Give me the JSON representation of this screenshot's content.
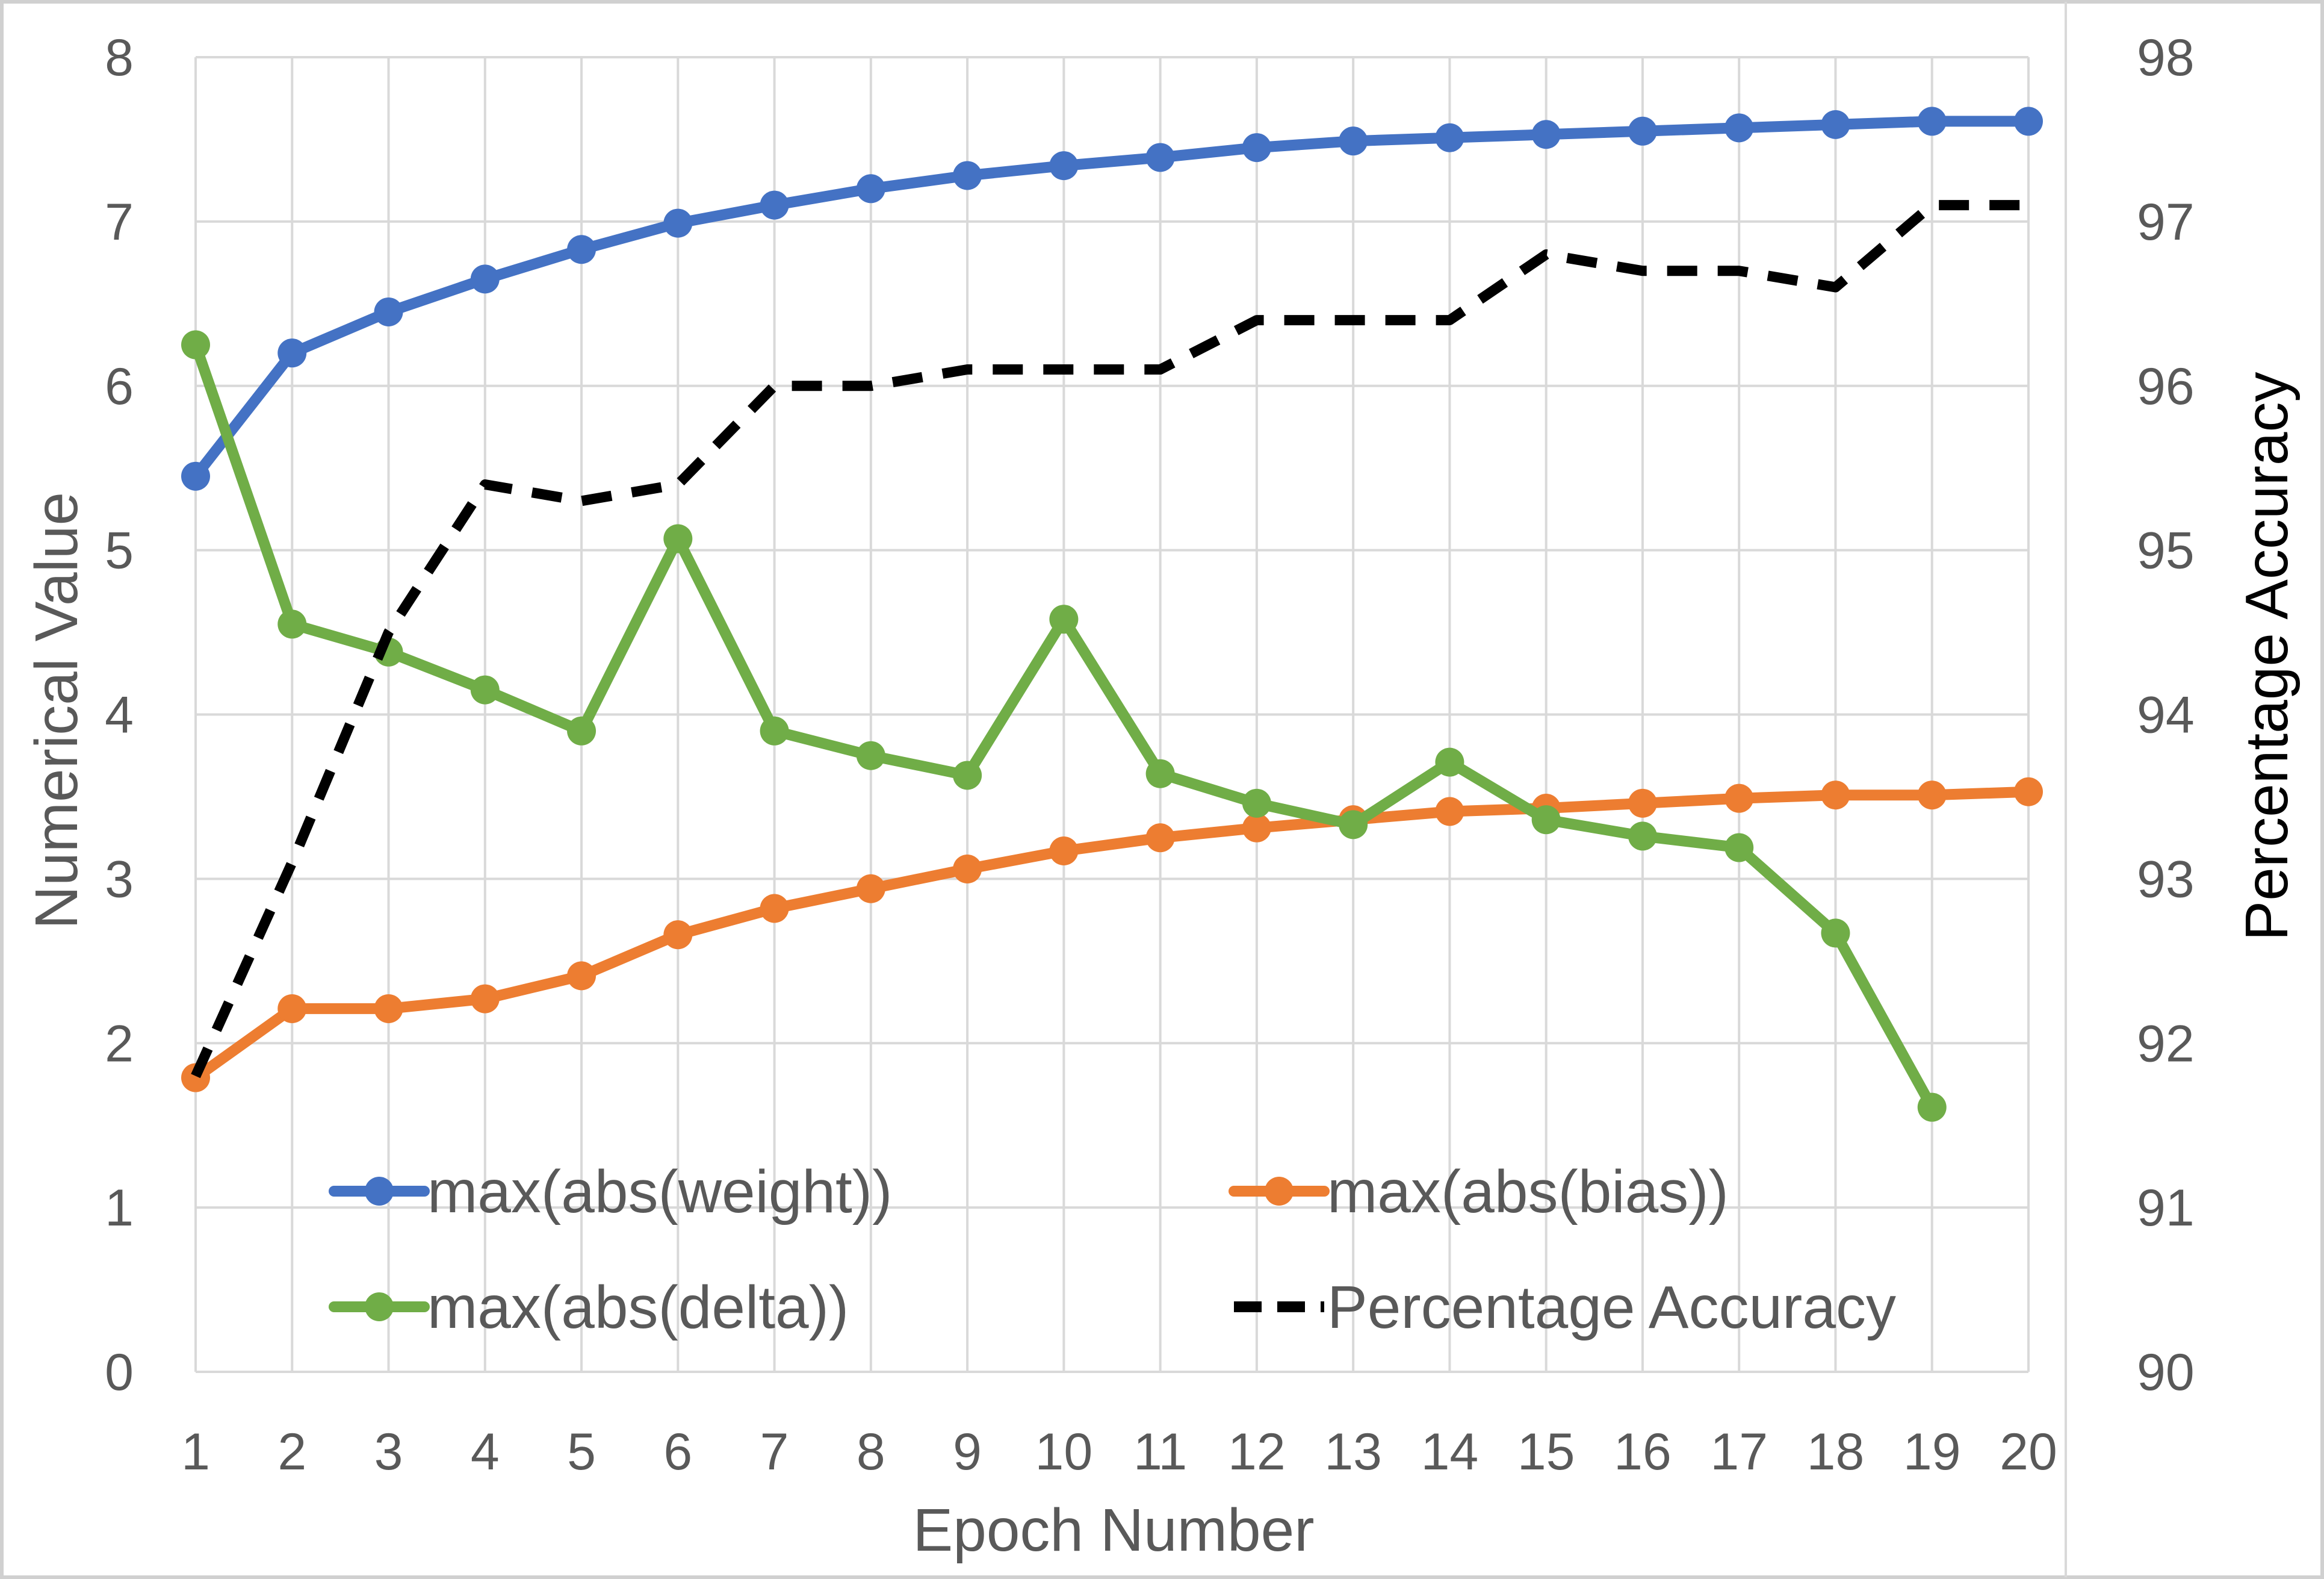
{
  "chart_data": {
    "type": "line",
    "title": "",
    "xlabel": "Epoch Number",
    "ylabel": "Numerical Value",
    "y2label": "Percentage Accuracy",
    "categories": [
      "1",
      "2",
      "3",
      "4",
      "5",
      "6",
      "7",
      "8",
      "9",
      "10",
      "11",
      "12",
      "13",
      "14",
      "15",
      "16",
      "17",
      "18",
      "19",
      "20"
    ],
    "ylim": [
      0,
      8
    ],
    "y_ticks": [
      "0",
      "1",
      "2",
      "3",
      "4",
      "5",
      "6",
      "7",
      "8"
    ],
    "y2lim": [
      90,
      98
    ],
    "y2_ticks": [
      "90",
      "91",
      "92",
      "93",
      "94",
      "95",
      "96",
      "97",
      "98"
    ],
    "grid": true,
    "legend_position": "bottom-inside",
    "series": [
      {
        "name": "max(abs(weight))",
        "axis": "left",
        "color": "#4472C4",
        "style": "solid-markers",
        "values": [
          5.45,
          6.2,
          6.45,
          6.65,
          6.83,
          6.99,
          7.1,
          7.2,
          7.28,
          7.34,
          7.39,
          7.45,
          7.49,
          7.51,
          7.53,
          7.55,
          7.57,
          7.59,
          7.61,
          7.61
        ]
      },
      {
        "name": "max(abs(bias))",
        "axis": "left",
        "color": "#ED7D31",
        "style": "solid-markers",
        "values": [
          1.79,
          2.21,
          2.21,
          2.27,
          2.41,
          2.66,
          2.82,
          2.94,
          3.06,
          3.17,
          3.25,
          3.31,
          3.36,
          3.41,
          3.43,
          3.46,
          3.49,
          3.51,
          3.51,
          3.53
        ]
      },
      {
        "name": "max(abs(delta))",
        "axis": "left",
        "color": "#70AD47",
        "style": "solid-markers",
        "values": [
          6.25,
          4.55,
          4.38,
          4.15,
          3.9,
          5.07,
          3.9,
          3.75,
          3.63,
          4.58,
          3.64,
          3.46,
          3.33,
          3.71,
          3.36,
          3.26,
          3.19,
          2.67,
          1.61,
          null
        ]
      },
      {
        "name": "Percentage Accuracy",
        "axis": "right",
        "color": "#000000",
        "style": "dashed",
        "values": [
          91.8,
          93.1,
          94.5,
          95.4,
          95.3,
          95.4,
          96.0,
          96.0,
          96.1,
          96.1,
          96.1,
          96.4,
          96.4,
          96.4,
          96.8,
          96.7,
          96.7,
          96.6,
          97.1,
          97.1
        ]
      }
    ]
  }
}
